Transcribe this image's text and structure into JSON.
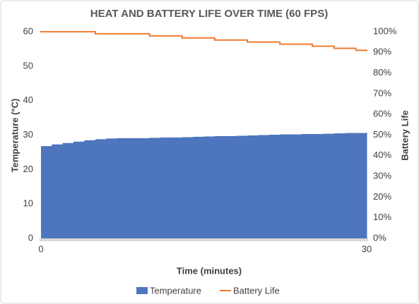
{
  "chart_data": {
    "type": "step-area-line",
    "title": "HEAT AND BATTERY LIFE OVER TIME (60 FPS)",
    "xlabel": "Time (minutes)",
    "ylabel": "Temperature (°C)",
    "y2label": "Battery Life",
    "x": [
      0,
      1,
      2,
      3,
      4,
      5,
      6,
      7,
      8,
      9,
      10,
      11,
      12,
      13,
      14,
      15,
      16,
      17,
      18,
      19,
      20,
      21,
      22,
      23,
      24,
      25,
      26,
      27,
      28,
      29,
      30
    ],
    "series": [
      {
        "name": "Temperature",
        "color": "#4e76be",
        "kind": "area",
        "values": [
          26.8,
          27.3,
          27.7,
          28.1,
          28.5,
          28.8,
          29.0,
          29.1,
          29.1,
          29.1,
          29.2,
          29.3,
          29.3,
          29.4,
          29.5,
          29.6,
          29.7,
          29.7,
          29.8,
          29.9,
          30.0,
          30.1,
          30.2,
          30.2,
          30.3,
          30.3,
          30.4,
          30.5,
          30.6,
          30.6,
          30.7
        ]
      },
      {
        "name": "Battery Life",
        "color": "#ed7d31",
        "kind": "line",
        "axis": "y2",
        "values": [
          100,
          100,
          100,
          100,
          100,
          99,
          99,
          99,
          99,
          99,
          98,
          98,
          98,
          97,
          97,
          97,
          96,
          96,
          96,
          95,
          95,
          95,
          94,
          94,
          94,
          93,
          93,
          92,
          92,
          91,
          91
        ]
      }
    ],
    "xlim": [
      0,
      30
    ],
    "xticks": [
      0,
      30
    ],
    "ylim": [
      0,
      60
    ],
    "yticks": [
      0,
      10,
      20,
      30,
      40,
      50,
      60
    ],
    "y2lim": [
      0,
      100
    ],
    "y2ticks": [
      {
        "value": 0,
        "label": "0%"
      },
      {
        "value": 10,
        "label": "10%"
      },
      {
        "value": 20,
        "label": "20%"
      },
      {
        "value": 30,
        "label": "30%"
      },
      {
        "value": 40,
        "label": "40%"
      },
      {
        "value": 50,
        "label": "50%"
      },
      {
        "value": 60,
        "label": "60%"
      },
      {
        "value": 70,
        "label": "70%"
      },
      {
        "value": 80,
        "label": "80%"
      },
      {
        "value": 90,
        "label": "90%"
      },
      {
        "value": 100,
        "label": "100%"
      }
    ],
    "grid": false,
    "legend": "bottom"
  }
}
